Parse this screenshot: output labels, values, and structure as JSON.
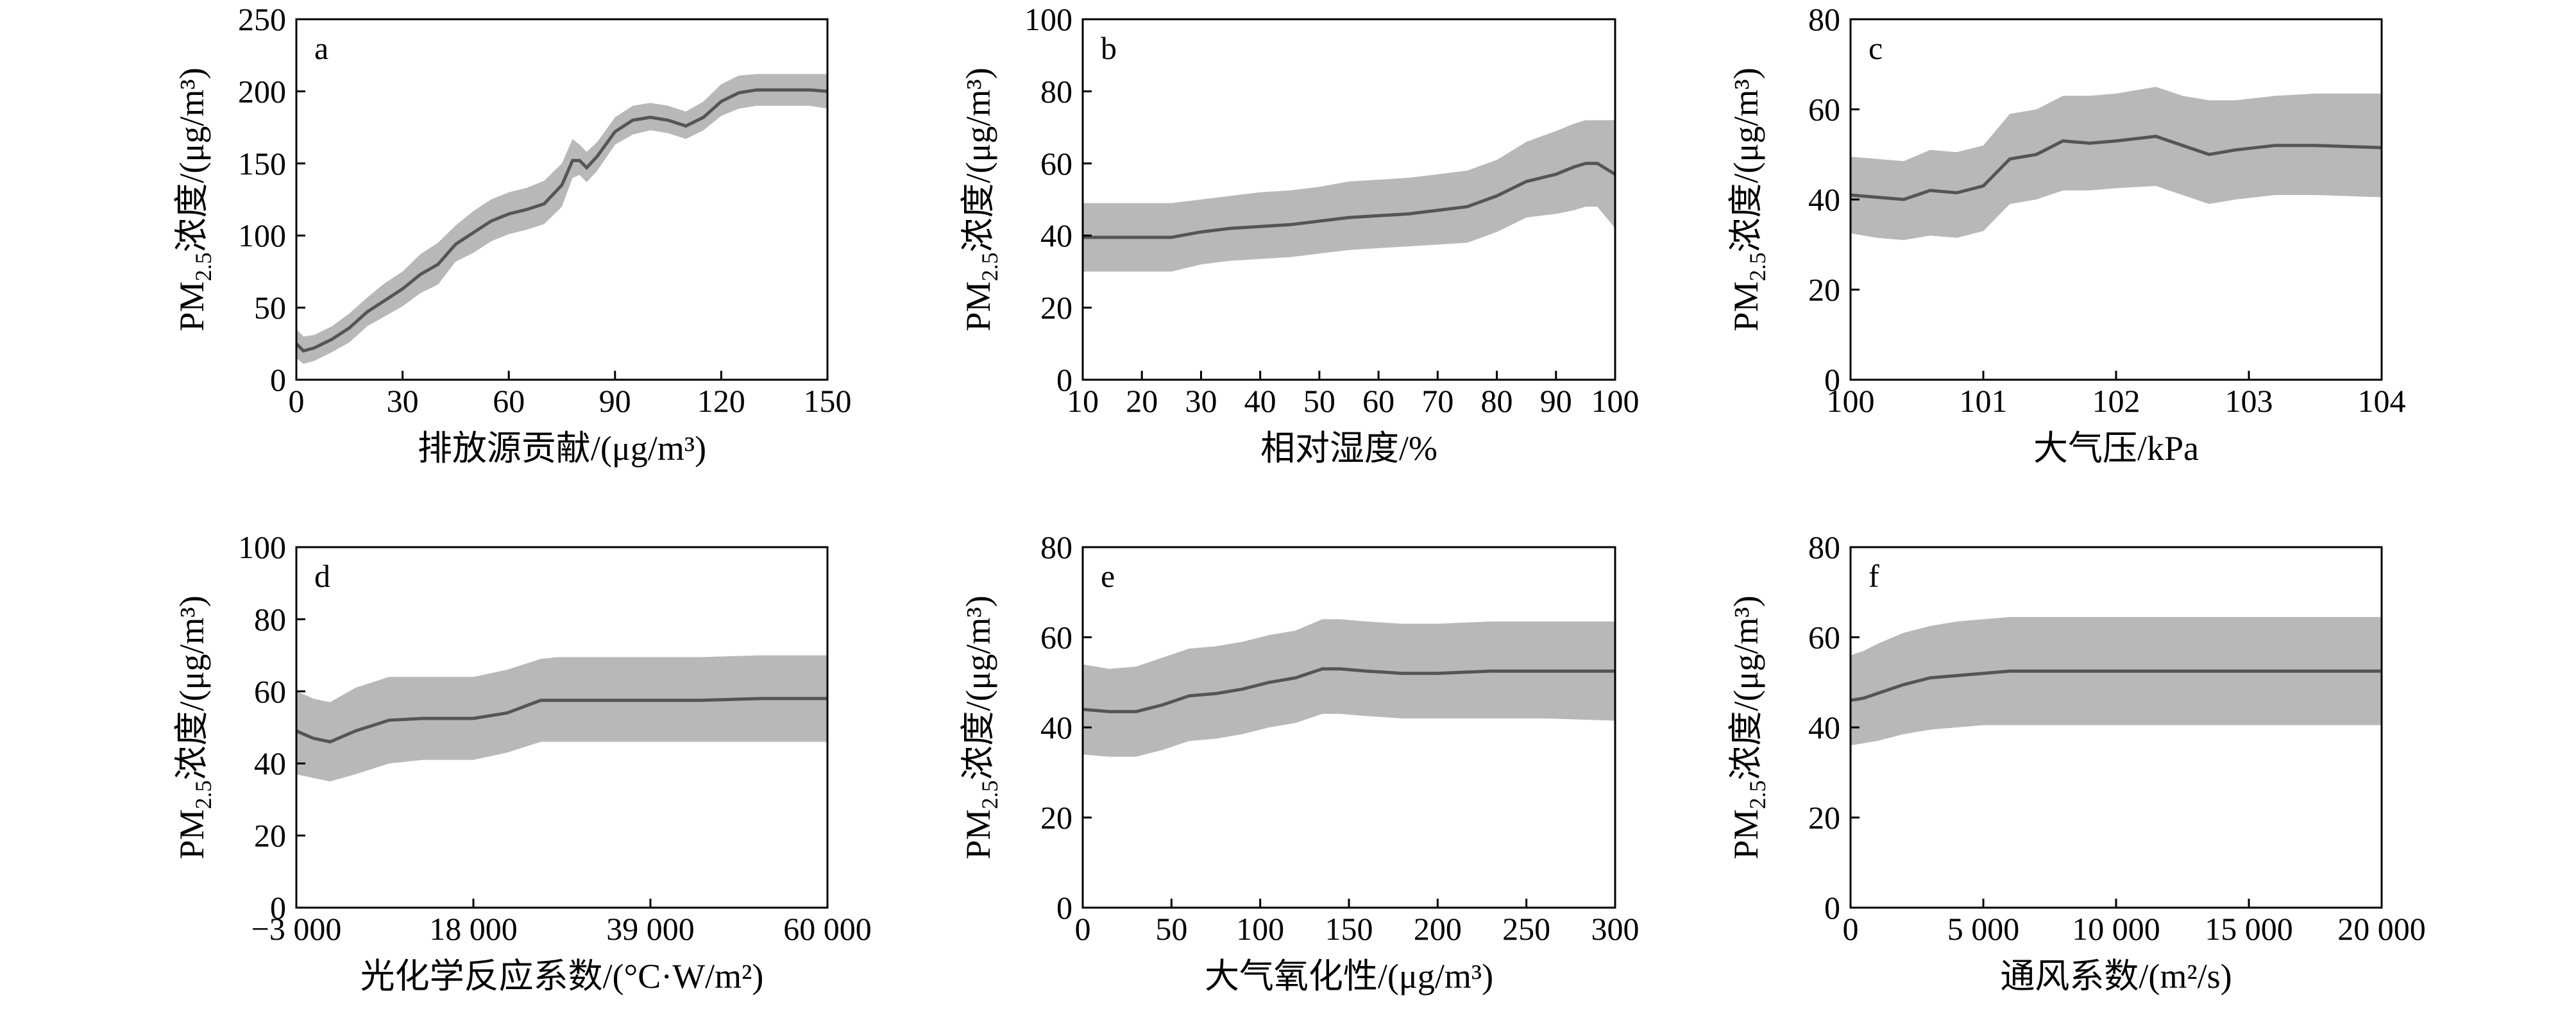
{
  "chart_data": [
    {
      "type": "area",
      "label": "a",
      "xlabel": "排放源贡献/(μg/m³)",
      "ylabel": {
        "pre": "PM",
        "sub": "2.5",
        "post": "浓度/(μg/m³)"
      },
      "xlim": [
        0,
        150
      ],
      "ylim": [
        0,
        250
      ],
      "xticks": [
        0,
        30,
        60,
        90,
        120,
        150
      ],
      "xtick_labels": [
        "0",
        "30",
        "60",
        "90",
        "120",
        "150"
      ],
      "yticks": [
        0,
        50,
        100,
        150,
        200,
        250
      ],
      "ytick_labels": [
        "0",
        "50",
        "100",
        "150",
        "200",
        "250"
      ],
      "x": [
        0,
        2,
        5,
        10,
        15,
        20,
        25,
        30,
        35,
        40,
        45,
        50,
        55,
        60,
        65,
        70,
        75,
        78,
        80,
        82,
        85,
        90,
        95,
        100,
        105,
        110,
        115,
        120,
        125,
        130,
        135,
        140,
        145,
        150
      ],
      "mean": [
        25,
        20,
        22,
        28,
        36,
        47,
        55,
        63,
        73,
        80,
        94,
        102,
        110,
        115,
        118,
        122,
        135,
        152,
        152,
        147,
        155,
        172,
        180,
        182,
        180,
        176,
        182,
        193,
        199,
        201,
        201,
        201,
        201,
        200
      ],
      "upper": [
        35,
        30,
        31,
        37,
        46,
        57,
        67,
        75,
        87,
        95,
        107,
        117,
        125,
        130,
        133,
        138,
        150,
        167,
        163,
        158,
        165,
        182,
        190,
        192,
        190,
        186,
        193,
        205,
        211,
        212,
        212,
        212,
        212,
        212
      ],
      "lower": [
        15,
        11,
        13,
        19,
        26,
        37,
        44,
        51,
        60,
        66,
        82,
        88,
        96,
        101,
        104,
        108,
        120,
        140,
        142,
        137,
        145,
        163,
        170,
        173,
        171,
        167,
        173,
        183,
        188,
        190,
        190,
        190,
        190,
        188
      ]
    },
    {
      "type": "area",
      "label": "b",
      "xlabel": "相对湿度/%",
      "ylabel": {
        "pre": "PM",
        "sub": "2.5",
        "post": "浓度/(μg/m³)"
      },
      "xlim": [
        10,
        100
      ],
      "ylim": [
        0,
        100
      ],
      "xticks": [
        10,
        20,
        30,
        40,
        50,
        60,
        70,
        80,
        90,
        100
      ],
      "xtick_labels": [
        "10",
        "20",
        "30",
        "40",
        "50",
        "60",
        "70",
        "80",
        "90",
        "100"
      ],
      "yticks": [
        0,
        20,
        40,
        60,
        80,
        100
      ],
      "ytick_labels": [
        "0",
        "20",
        "40",
        "60",
        "80",
        "100"
      ],
      "x": [
        10,
        15,
        20,
        25,
        30,
        35,
        40,
        45,
        50,
        55,
        60,
        65,
        70,
        75,
        80,
        85,
        90,
        93,
        95,
        97,
        100
      ],
      "mean": [
        39.5,
        39.5,
        39.5,
        39.5,
        41,
        42,
        42.5,
        43,
        44,
        45,
        45.5,
        46,
        47,
        48,
        51,
        55,
        57,
        59,
        60,
        60,
        57
      ],
      "upper": [
        49,
        49,
        49,
        49,
        50,
        51,
        52,
        52.5,
        53.5,
        55,
        55.5,
        56,
        57,
        58,
        61,
        66,
        69,
        71,
        72,
        72,
        72
      ],
      "lower": [
        30,
        30,
        30,
        30,
        32,
        33,
        33.5,
        34,
        35,
        36,
        36.5,
        37,
        37.5,
        38,
        41,
        45,
        46,
        47,
        48,
        48,
        42
      ]
    },
    {
      "type": "area",
      "label": "c",
      "xlabel": "大气压/kPa",
      "ylabel": {
        "pre": "PM",
        "sub": "2.5",
        "post": "浓度/(μg/m³)"
      },
      "xlim": [
        100,
        104
      ],
      "ylim": [
        0,
        80
      ],
      "xticks": [
        100,
        101,
        102,
        103,
        104
      ],
      "xtick_labels": [
        "100",
        "101",
        "102",
        "103",
        "104"
      ],
      "yticks": [
        0,
        20,
        40,
        60,
        80
      ],
      "ytick_labels": [
        "0",
        "20",
        "40",
        "60",
        "80"
      ],
      "x": [
        100,
        100.2,
        100.4,
        100.6,
        100.8,
        101.0,
        101.2,
        101.4,
        101.6,
        101.8,
        102.0,
        102.3,
        102.5,
        102.7,
        102.9,
        103.2,
        103.5,
        104
      ],
      "mean": [
        41,
        40.5,
        40,
        42,
        41.5,
        43,
        49,
        50,
        53,
        52.5,
        53,
        54,
        52,
        50,
        51,
        52,
        52,
        51.5
      ],
      "upper": [
        49.5,
        49,
        48.5,
        51,
        50.5,
        52,
        59,
        60,
        63,
        63,
        63.5,
        65,
        63,
        62,
        62,
        63,
        63.5,
        63.5
      ],
      "lower": [
        32.5,
        31.5,
        31,
        32,
        31.5,
        33,
        39,
        40,
        42,
        42,
        42.5,
        43,
        41,
        39,
        40,
        41,
        41,
        40.5
      ]
    },
    {
      "type": "area",
      "label": "d",
      "xlabel": "光化学反应系数/(°C·W/m²)",
      "ylabel": {
        "pre": "PM",
        "sub": "2.5",
        "post": "浓度/(μg/m³)"
      },
      "xlim": [
        -3000,
        60000
      ],
      "ylim": [
        0,
        100
      ],
      "xticks": [
        -3000,
        18000,
        39000,
        60000
      ],
      "xtick_labels": [
        "−3 000",
        "18 000",
        "39 000",
        "60 000"
      ],
      "yticks": [
        0,
        20,
        40,
        60,
        80,
        100
      ],
      "ytick_labels": [
        "0",
        "20",
        "40",
        "60",
        "80",
        "100"
      ],
      "x": [
        -3000,
        -1000,
        1000,
        4000,
        8000,
        12000,
        18000,
        22000,
        26000,
        28000,
        32000,
        39000,
        45000,
        52000,
        60000
      ],
      "mean": [
        49,
        47,
        46,
        49,
        52,
        52.5,
        52.5,
        54,
        57.5,
        57.5,
        57.5,
        57.5,
        57.5,
        58,
        58
      ],
      "upper": [
        60,
        58,
        57,
        61,
        64,
        64,
        64,
        66,
        69,
        69.5,
        69.5,
        69.5,
        69.5,
        70,
        70
      ],
      "lower": [
        37,
        36,
        35,
        37,
        40,
        41,
        41,
        43,
        46,
        46,
        46,
        46,
        46,
        46,
        46
      ]
    },
    {
      "type": "area",
      "label": "e",
      "xlabel": "大气氧化性/(μg/m³)",
      "ylabel": {
        "pre": "PM",
        "sub": "2.5",
        "post": "浓度/(μg/m³)"
      },
      "xlim": [
        0,
        300
      ],
      "ylim": [
        0,
        80
      ],
      "xticks": [
        0,
        50,
        100,
        150,
        200,
        250,
        300
      ],
      "xtick_labels": [
        "0",
        "50",
        "100",
        "150",
        "200",
        "250",
        "300"
      ],
      "yticks": [
        0,
        20,
        40,
        60,
        80
      ],
      "ytick_labels": [
        "0",
        "20",
        "40",
        "60",
        "80"
      ],
      "x": [
        0,
        15,
        30,
        45,
        60,
        75,
        90,
        105,
        120,
        135,
        145,
        160,
        180,
        200,
        230,
        260,
        300
      ],
      "mean": [
        44,
        43.5,
        43.5,
        45,
        47,
        47.5,
        48.5,
        50,
        51,
        53,
        53,
        52.5,
        52,
        52,
        52.5,
        52.5,
        52.5
      ],
      "upper": [
        54,
        53,
        53.5,
        55.5,
        57.5,
        58,
        59,
        60.5,
        61.5,
        64,
        64,
        63.5,
        63,
        63,
        63.5,
        63.5,
        63.5
      ],
      "lower": [
        34,
        33.5,
        33.5,
        35,
        37,
        37.5,
        38.5,
        40,
        41,
        43,
        43,
        42.5,
        42,
        42,
        42,
        42,
        41.5
      ]
    },
    {
      "type": "area",
      "label": "f",
      "xlabel": "通风系数/(m²/s)",
      "ylabel": {
        "pre": "PM",
        "sub": "2.5",
        "post": "浓度/(μg/m³)"
      },
      "xlim": [
        0,
        20000
      ],
      "ylim": [
        0,
        80
      ],
      "xticks": [
        0,
        5000,
        10000,
        15000,
        20000
      ],
      "xtick_labels": [
        "0",
        "5 000",
        "10 000",
        "15 000",
        "20 000"
      ],
      "yticks": [
        0,
        20,
        40,
        60,
        80
      ],
      "ytick_labels": [
        "0",
        "20",
        "40",
        "60",
        "80"
      ],
      "x": [
        0,
        500,
        1000,
        2000,
        3000,
        4000,
        5000,
        6000,
        8000,
        10000,
        15000,
        20000
      ],
      "mean": [
        46,
        46.5,
        47.5,
        49.5,
        51,
        51.5,
        52,
        52.5,
        52.5,
        52.5,
        52.5,
        52.5
      ],
      "upper": [
        56,
        57,
        58.5,
        61,
        62.5,
        63.5,
        64,
        64.5,
        64.5,
        64.5,
        64.5,
        64.5
      ],
      "lower": [
        36,
        36.5,
        37,
        38.5,
        39.5,
        40,
        40.5,
        40.5,
        40.5,
        40.5,
        40.5,
        40.5
      ]
    }
  ]
}
